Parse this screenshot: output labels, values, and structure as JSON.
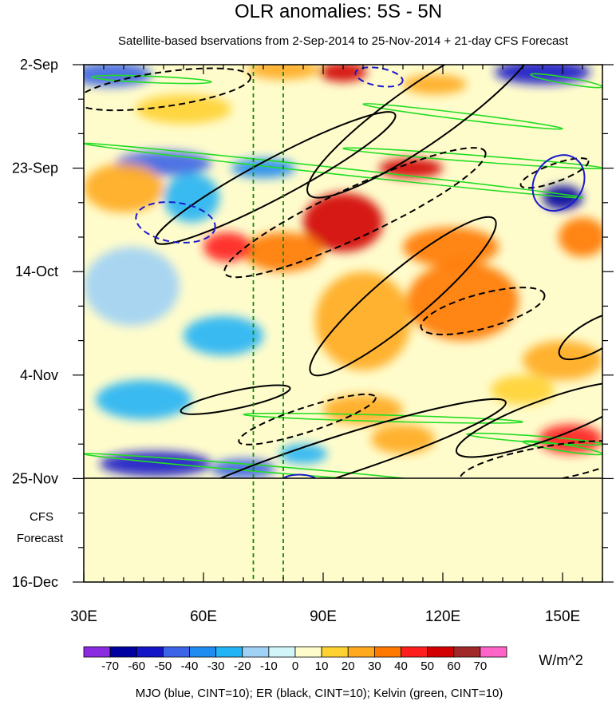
{
  "chart_data": {
    "type": "heatmap",
    "title": "OLR anomalies: 5S - 5N",
    "subtitle": "Satellite-based bservations from 2-Sep-2014 to 25-Nov-2014 + 21-day CFS Forecast",
    "x_axis": {
      "range_deg": [
        30,
        160
      ],
      "ticks": [
        {
          "value": 30,
          "label": "30E"
        },
        {
          "value": 60,
          "label": "60E"
        },
        {
          "value": 90,
          "label": "90E"
        },
        {
          "value": 120,
          "label": "120E"
        },
        {
          "value": 150,
          "label": "150E"
        }
      ]
    },
    "y_axis": {
      "range_days": [
        0,
        105
      ],
      "ticks": [
        {
          "value": 0,
          "label": "2-Sep"
        },
        {
          "value": 21,
          "label": "23-Sep"
        },
        {
          "value": 42,
          "label": "14-Oct"
        },
        {
          "value": 63,
          "label": "4-Nov"
        },
        {
          "value": 84,
          "label": "25-Nov"
        },
        {
          "value": 105,
          "label": "16-Dec"
        }
      ],
      "observation_end_day": 84
    },
    "forecast_label_line1": "CFS",
    "forecast_label_line2": "Forecast",
    "forecast_fill": "#fffccc",
    "reference_lines_lon": [
      72.5,
      80
    ],
    "colorbar": {
      "unit": "W/m^2",
      "levels": [
        "-70",
        "-60",
        "-50",
        "-40",
        "-30",
        "-20",
        "-10",
        "0",
        "10",
        "20",
        "30",
        "40",
        "50",
        "60",
        "70"
      ],
      "colors": [
        "#8a2be2",
        "#0000a0",
        "#1515c8",
        "#3c64e6",
        "#1e8cf0",
        "#23b4f5",
        "#a0d2f5",
        "#d2f5fa",
        "#fffccc",
        "#ffd232",
        "#ffaa1e",
        "#ff7800",
        "#ff1e1e",
        "#d20000",
        "#a02828",
        "#ff64c8"
      ]
    },
    "caption": "MJO (blue, CINT=10); ER (black, CINT=10); Kelvin (green, CINT=10)",
    "anomaly_blobs": [
      {
        "lon": 37,
        "day": 2,
        "rlon": 10,
        "rday": 2.5,
        "value": -45
      },
      {
        "lon": 80,
        "day": 1,
        "rlon": 9,
        "rday": 2,
        "value": 25
      },
      {
        "lon": 95,
        "day": 1.5,
        "rlon": 6,
        "rday": 2,
        "value": 55
      },
      {
        "lon": 145,
        "day": 1.5,
        "rlon": 12,
        "rday": 2.5,
        "value": -55
      },
      {
        "lon": 118,
        "day": 4,
        "rlon": 8,
        "rday": 2,
        "value": 20
      },
      {
        "lon": 55,
        "day": 9,
        "rlon": 12,
        "rday": 3,
        "value": 15
      },
      {
        "lon": 50,
        "day": 20,
        "rlon": 12,
        "rday": 2.5,
        "value": -45
      },
      {
        "lon": 75,
        "day": 21,
        "rlon": 8,
        "rday": 2,
        "value": -35
      },
      {
        "lon": 112,
        "day": 21,
        "rlon": 8,
        "rday": 2,
        "value": 50
      },
      {
        "lon": 150,
        "day": 27,
        "rlon": 5,
        "rday": 2.5,
        "value": -70
      },
      {
        "lon": 40,
        "day": 25,
        "rlon": 10,
        "rday": 5,
        "value": 20
      },
      {
        "lon": 57,
        "day": 27,
        "rlon": 7,
        "rday": 5,
        "value": -25
      },
      {
        "lon": 95,
        "day": 32,
        "rlon": 10,
        "rday": 6,
        "value": 50
      },
      {
        "lon": 80,
        "day": 38,
        "rlon": 10,
        "rday": 4,
        "value": 35
      },
      {
        "lon": 66,
        "day": 37,
        "rlon": 6,
        "rday": 3,
        "value": 40
      },
      {
        "lon": 122,
        "day": 37,
        "rlon": 12,
        "rday": 4,
        "value": 30
      },
      {
        "lon": 155,
        "day": 35,
        "rlon": 6,
        "rday": 4,
        "value": 30
      },
      {
        "lon": 42,
        "day": 45,
        "rlon": 12,
        "rday": 8,
        "value": -15
      },
      {
        "lon": 125,
        "day": 48,
        "rlon": 14,
        "rday": 8,
        "value": 35
      },
      {
        "lon": 100,
        "day": 52,
        "rlon": 12,
        "rday": 10,
        "value": 20
      },
      {
        "lon": 65,
        "day": 55,
        "rlon": 10,
        "rday": 4,
        "value": -25
      },
      {
        "lon": 150,
        "day": 60,
        "rlon": 10,
        "rday": 4,
        "value": 25
      },
      {
        "lon": 45,
        "day": 68,
        "rlon": 12,
        "rday": 4,
        "value": -25
      },
      {
        "lon": 100,
        "day": 70,
        "rlon": 10,
        "rday": 3,
        "value": 20
      },
      {
        "lon": 140,
        "day": 66,
        "rlon": 8,
        "rday": 3,
        "value": 15
      },
      {
        "lon": 48,
        "day": 81,
        "rlon": 14,
        "rday": 2.5,
        "value": -60
      },
      {
        "lon": 70,
        "day": 82,
        "rlon": 8,
        "rday": 2,
        "value": -50
      },
      {
        "lon": 85,
        "day": 79,
        "rlon": 6,
        "rday": 2,
        "value": -30
      },
      {
        "lon": 152,
        "day": 76,
        "rlon": 8,
        "rday": 3,
        "value": 45
      },
      {
        "lon": 110,
        "day": 76,
        "rlon": 8,
        "rday": 3,
        "value": 20
      }
    ],
    "mjo_contours": [
      {
        "lon": 104,
        "day": 2.5,
        "rlon": 6,
        "rday": 1.8,
        "angle": 10,
        "dash": true
      },
      {
        "lon": 53,
        "day": 32,
        "rlon": 10,
        "rday": 4,
        "angle": 8,
        "dash": true
      },
      {
        "lon": 149,
        "day": 24,
        "rlon": 6,
        "rday": 6,
        "angle": 35,
        "dash": false
      },
      {
        "lon": 84,
        "day": 85,
        "rlon": 5,
        "rday": 1.8,
        "angle": 0,
        "dash": false
      }
    ],
    "er_contours": [
      {
        "lon": 50,
        "day": 5,
        "rlon": 22,
        "rday": 3.5,
        "angle": -8,
        "dash": true
      },
      {
        "lon": 115,
        "day": 10,
        "rlon": 35,
        "rday": 6,
        "angle": -35,
        "dash": false
      },
      {
        "lon": 78,
        "day": 23,
        "rlon": 34,
        "rday": 4,
        "angle": -28,
        "dash": false
      },
      {
        "lon": 98,
        "day": 30,
        "rlon": 36,
        "rday": 5,
        "angle": -25,
        "dash": true
      },
      {
        "lon": 148,
        "day": 22,
        "rlon": 9,
        "rday": 1.8,
        "angle": -20,
        "dash": true
      },
      {
        "lon": 110,
        "day": 47,
        "rlon": 30,
        "rday": 5,
        "angle": -40,
        "dash": false
      },
      {
        "lon": 130,
        "day": 50,
        "rlon": 16,
        "rday": 3.5,
        "angle": -15,
        "dash": true
      },
      {
        "lon": 68,
        "day": 68,
        "rlon": 14,
        "rday": 1.8,
        "angle": -12,
        "dash": false
      },
      {
        "lon": 86,
        "day": 72,
        "rlon": 18,
        "rday": 2.5,
        "angle": -18,
        "dash": true
      },
      {
        "lon": 92,
        "day": 80,
        "rlon": 46,
        "rday": 4,
        "angle": -18,
        "dash": false
      },
      {
        "lon": 146,
        "day": 72,
        "rlon": 24,
        "rday": 4,
        "angle": -20,
        "dash": false
      },
      {
        "lon": 146,
        "day": 81,
        "rlon": 22,
        "rday": 3.5,
        "angle": -10,
        "dash": true
      },
      {
        "lon": 158,
        "day": 55,
        "rlon": 10,
        "rday": 3,
        "angle": -30,
        "dash": false
      }
    ],
    "kelvin_bands": [
      {
        "lon": 32,
        "day": 2.5,
        "lon2": 62,
        "day2": 3.5
      },
      {
        "lon": 142,
        "day": 2,
        "lon2": 160,
        "day2": 4.5
      },
      {
        "lon": 100,
        "day": 8,
        "lon2": 150,
        "day2": 13
      },
      {
        "lon": 30,
        "day": 16,
        "lon2": 155,
        "day2": 27
      },
      {
        "lon": 95,
        "day": 17,
        "lon2": 160,
        "day2": 21
      },
      {
        "lon": 70,
        "day": 71,
        "lon2": 140,
        "day2": 72.5
      },
      {
        "lon": 126,
        "day": 75,
        "lon2": 160,
        "day2": 77
      },
      {
        "lon": 30,
        "day": 79,
        "lon2": 120,
        "day2": 85
      },
      {
        "lon": 140,
        "day": 76.5,
        "lon2": 160,
        "day2": 79
      }
    ]
  }
}
